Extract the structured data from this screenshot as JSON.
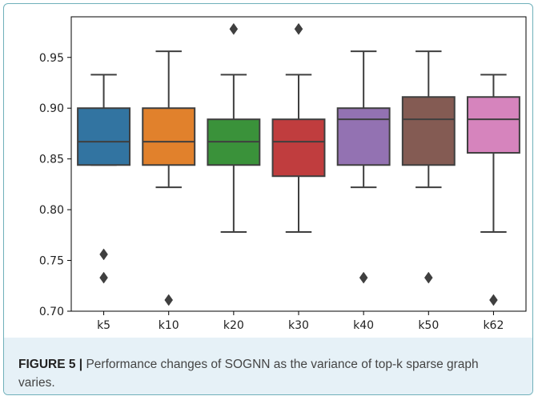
{
  "caption": {
    "figure_label": "FIGURE 5 |",
    "text": "Performance changes of SOGNN as the variance of top-k sparse graph varies."
  },
  "chart_data": {
    "type": "boxplot",
    "title": "",
    "xlabel": "",
    "ylabel": "",
    "categories": [
      "k5",
      "k10",
      "k20",
      "k30",
      "k40",
      "k50",
      "k62"
    ],
    "colors": [
      "#3274a1",
      "#e1812c",
      "#3a923a",
      "#c03d3e",
      "#9372b2",
      "#845b53",
      "#d684bd"
    ],
    "ylim": [
      0.7,
      0.99
    ],
    "yticks": [
      0.7,
      0.75,
      0.8,
      0.85,
      0.9,
      0.95
    ],
    "ytick_labels": [
      "0.70",
      "0.75",
      "0.80",
      "0.85",
      "0.90",
      "0.95"
    ],
    "boxes": [
      {
        "category": "k5",
        "q1": 0.844,
        "median": 0.867,
        "q3": 0.9,
        "whisker_low": 0.844,
        "whisker_high": 0.933,
        "outliers": [
          0.756,
          0.733
        ]
      },
      {
        "category": "k10",
        "q1": 0.844,
        "median": 0.867,
        "q3": 0.9,
        "whisker_low": 0.822,
        "whisker_high": 0.956,
        "outliers": [
          0.711
        ]
      },
      {
        "category": "k20",
        "q1": 0.844,
        "median": 0.867,
        "q3": 0.889,
        "whisker_low": 0.778,
        "whisker_high": 0.933,
        "outliers": [
          0.978
        ]
      },
      {
        "category": "k30",
        "q1": 0.833,
        "median": 0.867,
        "q3": 0.889,
        "whisker_low": 0.778,
        "whisker_high": 0.933,
        "outliers": [
          0.978
        ]
      },
      {
        "category": "k40",
        "q1": 0.844,
        "median": 0.889,
        "q3": 0.9,
        "whisker_low": 0.822,
        "whisker_high": 0.956,
        "outliers": [
          0.733
        ]
      },
      {
        "category": "k50",
        "q1": 0.844,
        "median": 0.889,
        "q3": 0.911,
        "whisker_low": 0.822,
        "whisker_high": 0.956,
        "outliers": [
          0.733
        ]
      },
      {
        "category": "k62",
        "q1": 0.856,
        "median": 0.889,
        "q3": 0.911,
        "whisker_low": 0.778,
        "whisker_high": 0.933,
        "outliers": [
          0.711
        ]
      }
    ],
    "grid": false,
    "legend": "none"
  }
}
